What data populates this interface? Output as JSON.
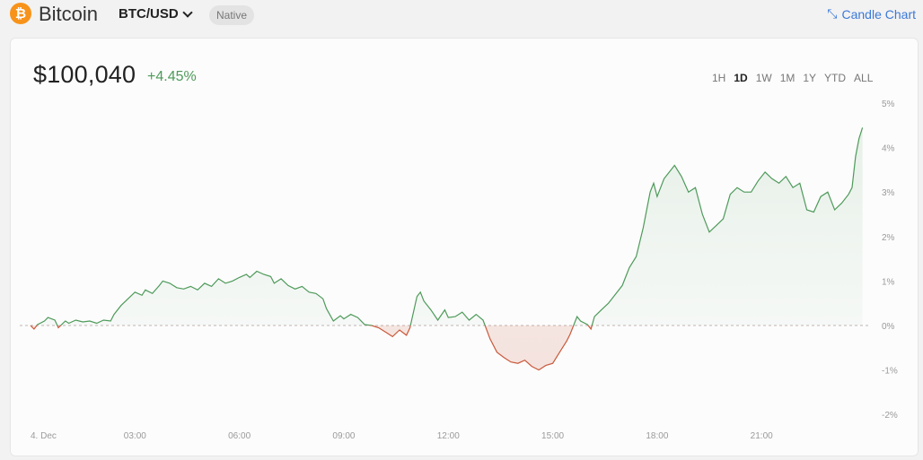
{
  "header": {
    "coin_icon": "bitcoin-icon",
    "coin_symbol_glyph": "₿",
    "coin_name": "Bitcoin",
    "pair": "BTC/USD",
    "badge": "Native",
    "candle_link": "Candle Chart"
  },
  "summary": {
    "price": "$100,040",
    "change": "+4.45%"
  },
  "ranges": [
    "1H",
    "1D",
    "1W",
    "1M",
    "1Y",
    "YTD",
    "ALL"
  ],
  "active_range": "1D",
  "colors": {
    "up": "#4e9a5a",
    "down": "#c9593b",
    "link": "#3b78d8"
  },
  "chart_data": {
    "type": "area",
    "x_unit": "hour",
    "x_tick_labels": [
      "4. Dec",
      "03:00",
      "06:00",
      "09:00",
      "12:00",
      "15:00",
      "18:00",
      "21:00"
    ],
    "x_ticks": [
      0,
      3,
      6,
      9,
      12,
      15,
      18,
      21
    ],
    "y_tick_labels": [
      "5%",
      "4%",
      "3%",
      "2%",
      "1%",
      "0%",
      "-1%",
      "-2%"
    ],
    "y_ticks": [
      5,
      4,
      3,
      2,
      1,
      0,
      -1,
      -2
    ],
    "ylim": [
      -2,
      5
    ],
    "xlim": [
      0,
      24
    ],
    "baseline": 0,
    "series": [
      {
        "values": [
          [
            0,
            0
          ],
          [
            0.1,
            -0.08
          ],
          [
            0.2,
            0.02
          ],
          [
            0.4,
            0.1
          ],
          [
            0.5,
            0.18
          ],
          [
            0.7,
            0.12
          ],
          [
            0.8,
            -0.05
          ],
          [
            1.0,
            0.1
          ],
          [
            1.1,
            0.05
          ],
          [
            1.3,
            0.12
          ],
          [
            1.5,
            0.08
          ],
          [
            1.7,
            0.1
          ],
          [
            1.9,
            0.05
          ],
          [
            2.1,
            0.12
          ],
          [
            2.3,
            0.1
          ],
          [
            2.4,
            0.25
          ],
          [
            2.6,
            0.45
          ],
          [
            2.8,
            0.6
          ],
          [
            3.0,
            0.75
          ],
          [
            3.2,
            0.68
          ],
          [
            3.3,
            0.8
          ],
          [
            3.5,
            0.72
          ],
          [
            3.7,
            0.9
          ],
          [
            3.8,
            1.0
          ],
          [
            4.0,
            0.95
          ],
          [
            4.2,
            0.85
          ],
          [
            4.4,
            0.82
          ],
          [
            4.6,
            0.88
          ],
          [
            4.8,
            0.8
          ],
          [
            5.0,
            0.95
          ],
          [
            5.2,
            0.88
          ],
          [
            5.4,
            1.05
          ],
          [
            5.6,
            0.95
          ],
          [
            5.8,
            1.0
          ],
          [
            6.0,
            1.08
          ],
          [
            6.2,
            1.15
          ],
          [
            6.3,
            1.08
          ],
          [
            6.5,
            1.22
          ],
          [
            6.7,
            1.15
          ],
          [
            6.9,
            1.1
          ],
          [
            7.0,
            0.95
          ],
          [
            7.2,
            1.05
          ],
          [
            7.4,
            0.9
          ],
          [
            7.6,
            0.82
          ],
          [
            7.8,
            0.88
          ],
          [
            8.0,
            0.75
          ],
          [
            8.2,
            0.72
          ],
          [
            8.4,
            0.6
          ],
          [
            8.5,
            0.38
          ],
          [
            8.7,
            0.1
          ],
          [
            8.9,
            0.22
          ],
          [
            9.0,
            0.15
          ],
          [
            9.2,
            0.25
          ],
          [
            9.4,
            0.18
          ],
          [
            9.6,
            0.02
          ],
          [
            9.8,
            0.0
          ],
          [
            10.0,
            -0.05
          ],
          [
            10.2,
            -0.15
          ],
          [
            10.4,
            -0.25
          ],
          [
            10.6,
            -0.1
          ],
          [
            10.8,
            -0.22
          ],
          [
            10.9,
            -0.05
          ],
          [
            11.0,
            0.3
          ],
          [
            11.1,
            0.65
          ],
          [
            11.2,
            0.75
          ],
          [
            11.3,
            0.55
          ],
          [
            11.5,
            0.35
          ],
          [
            11.7,
            0.12
          ],
          [
            11.9,
            0.35
          ],
          [
            12.0,
            0.18
          ],
          [
            12.2,
            0.2
          ],
          [
            12.4,
            0.3
          ],
          [
            12.6,
            0.12
          ],
          [
            12.8,
            0.25
          ],
          [
            13.0,
            0.12
          ],
          [
            13.2,
            -0.3
          ],
          [
            13.4,
            -0.6
          ],
          [
            13.6,
            -0.72
          ],
          [
            13.8,
            -0.82
          ],
          [
            14.0,
            -0.85
          ],
          [
            14.2,
            -0.78
          ],
          [
            14.4,
            -0.92
          ],
          [
            14.6,
            -1.0
          ],
          [
            14.8,
            -0.9
          ],
          [
            15.0,
            -0.85
          ],
          [
            15.2,
            -0.6
          ],
          [
            15.4,
            -0.35
          ],
          [
            15.5,
            -0.2
          ],
          [
            15.6,
            0.0
          ],
          [
            15.7,
            0.2
          ],
          [
            15.8,
            0.1
          ],
          [
            16.0,
            0.02
          ],
          [
            16.1,
            -0.08
          ],
          [
            16.2,
            0.2
          ],
          [
            16.4,
            0.35
          ],
          [
            16.6,
            0.5
          ],
          [
            16.8,
            0.7
          ],
          [
            17.0,
            0.9
          ],
          [
            17.1,
            1.1
          ],
          [
            17.2,
            1.3
          ],
          [
            17.4,
            1.55
          ],
          [
            17.6,
            2.2
          ],
          [
            17.8,
            3.0
          ],
          [
            17.9,
            3.2
          ],
          [
            18.0,
            2.9
          ],
          [
            18.2,
            3.3
          ],
          [
            18.4,
            3.5
          ],
          [
            18.5,
            3.6
          ],
          [
            18.7,
            3.35
          ],
          [
            18.9,
            3.0
          ],
          [
            19.1,
            3.1
          ],
          [
            19.3,
            2.5
          ],
          [
            19.5,
            2.1
          ],
          [
            19.7,
            2.25
          ],
          [
            19.9,
            2.4
          ],
          [
            20.1,
            2.95
          ],
          [
            20.3,
            3.1
          ],
          [
            20.5,
            3.0
          ],
          [
            20.7,
            3.0
          ],
          [
            20.9,
            3.25
          ],
          [
            21.1,
            3.45
          ],
          [
            21.3,
            3.3
          ],
          [
            21.5,
            3.2
          ],
          [
            21.7,
            3.35
          ],
          [
            21.9,
            3.1
          ],
          [
            22.1,
            3.2
          ],
          [
            22.3,
            2.6
          ],
          [
            22.5,
            2.55
          ],
          [
            22.7,
            2.9
          ],
          [
            22.9,
            3.0
          ],
          [
            23.1,
            2.6
          ],
          [
            23.3,
            2.75
          ],
          [
            23.5,
            2.95
          ],
          [
            23.6,
            3.1
          ],
          [
            23.7,
            3.8
          ],
          [
            23.8,
            4.2
          ],
          [
            23.9,
            4.45
          ]
        ]
      }
    ]
  }
}
